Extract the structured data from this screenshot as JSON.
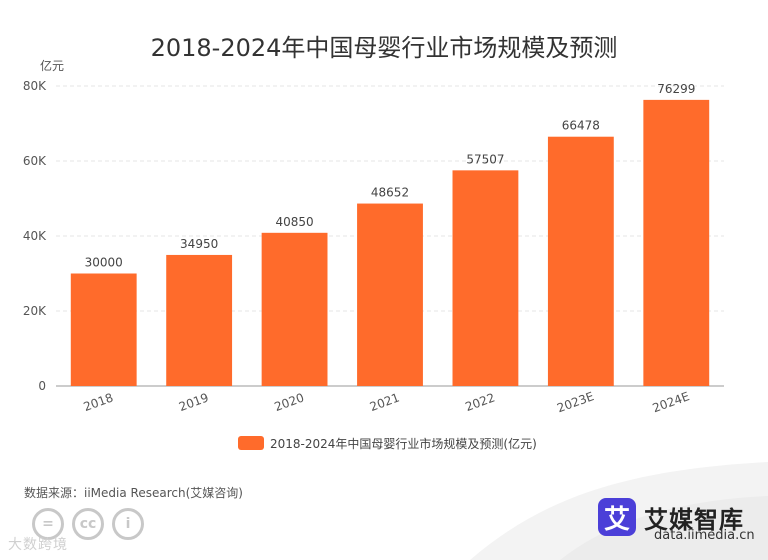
{
  "chart_data": {
    "type": "bar",
    "title": "2018-2024年中国母婴行业市场规模及预测",
    "unit_label": "亿元",
    "categories": [
      "2018",
      "2019",
      "2020",
      "2021",
      "2022",
      "2023E",
      "2024E"
    ],
    "series": [
      {
        "name": "2018-2024年中国母婴行业市场规模及预测(亿元)",
        "color": "#ff6b2b",
        "values": [
          30000,
          34950,
          40850,
          48652,
          57507,
          66478,
          76299
        ]
      }
    ],
    "y_ticks": [
      "0",
      "20K",
      "40K",
      "60K",
      "80K"
    ],
    "ylim": [
      0,
      80000
    ],
    "grid": true,
    "legend": "bottom"
  },
  "footer": {
    "source": "数据来源：iiMedia Research(艾媒咨询)",
    "brand_mark": "艾",
    "brand_name": "艾媒智库",
    "brand_url": "data.iimedia.cn",
    "watermark": "大数跨境",
    "cc_glyphs": [
      "=",
      "cc",
      "i"
    ]
  }
}
